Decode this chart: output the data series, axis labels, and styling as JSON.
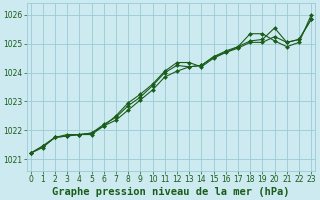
{
  "title": "Graphe pression niveau de la mer (hPa)",
  "background_color": "#cceaf0",
  "grid_color": "#99ccd6",
  "line_color": "#1a5c1a",
  "marker_color": "#1a5c1a",
  "xlim": [
    -0.3,
    23.3
  ],
  "ylim": [
    1020.6,
    1026.4
  ],
  "yticks": [
    1021,
    1022,
    1023,
    1024,
    1025,
    1026
  ],
  "xticks": [
    0,
    1,
    2,
    3,
    4,
    5,
    6,
    7,
    8,
    9,
    10,
    11,
    12,
    13,
    14,
    15,
    16,
    17,
    18,
    19,
    20,
    21,
    22,
    23
  ],
  "line1_y": [
    1021.2,
    1021.4,
    1021.75,
    1021.85,
    1021.85,
    1021.9,
    1022.15,
    1022.35,
    1022.7,
    1023.05,
    1023.4,
    1023.85,
    1024.05,
    1024.2,
    1024.25,
    1024.55,
    1024.7,
    1024.85,
    1025.05,
    1025.05,
    1025.25,
    1025.05,
    1025.15,
    1025.85
  ],
  "line2_y": [
    1021.2,
    1021.45,
    1021.75,
    1021.8,
    1021.85,
    1021.9,
    1022.2,
    1022.45,
    1022.85,
    1023.15,
    1023.55,
    1024.0,
    1024.25,
    1024.2,
    1024.25,
    1024.55,
    1024.75,
    1024.9,
    1025.1,
    1025.15,
    1025.55,
    1025.05,
    1025.15,
    1025.85
  ],
  "line3_y": [
    1021.2,
    1021.45,
    1021.75,
    1021.8,
    1021.85,
    1021.85,
    1022.15,
    1022.5,
    1022.95,
    1023.25,
    1023.6,
    1024.05,
    1024.35,
    1024.35,
    1024.2,
    1024.5,
    1024.7,
    1024.9,
    1025.35,
    1025.35,
    1025.1,
    1024.9,
    1025.05,
    1026.0
  ],
  "title_fontsize": 7.5,
  "tick_fontsize": 5.5
}
